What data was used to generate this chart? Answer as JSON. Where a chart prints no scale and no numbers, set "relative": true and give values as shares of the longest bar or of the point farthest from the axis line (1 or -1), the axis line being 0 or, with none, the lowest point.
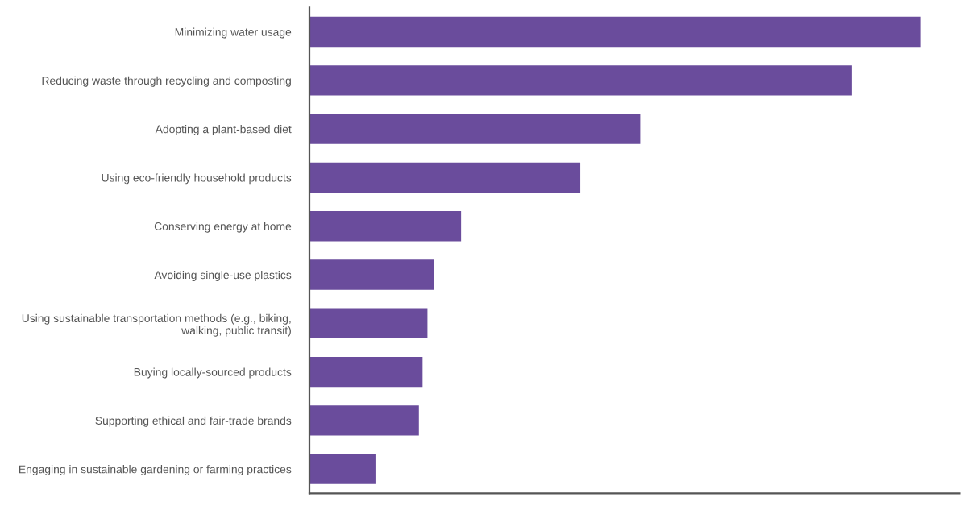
{
  "chart_data": {
    "type": "bar",
    "orientation": "horizontal",
    "relative": true,
    "categories": [
      "Minimizing water usage",
      "Reducing waste through recycling and composting",
      "Adopting a plant-based diet",
      "Using eco-friendly household products",
      "Conserving energy at home",
      "Avoiding single-use plastics",
      "Using sustainable transportation methods (e.g., biking, walking, public transit)",
      "Buying locally-sourced products",
      "Supporting ethical and fair-trade brands",
      "Engaging in sustainable gardening or farming practices"
    ],
    "values": [
      1,
      0.887,
      0.541,
      0.443,
      0.248,
      0.203,
      0.193,
      0.185,
      0.179,
      0.108
    ],
    "color": "#6a4c9c",
    "grid": false,
    "legend": false
  }
}
